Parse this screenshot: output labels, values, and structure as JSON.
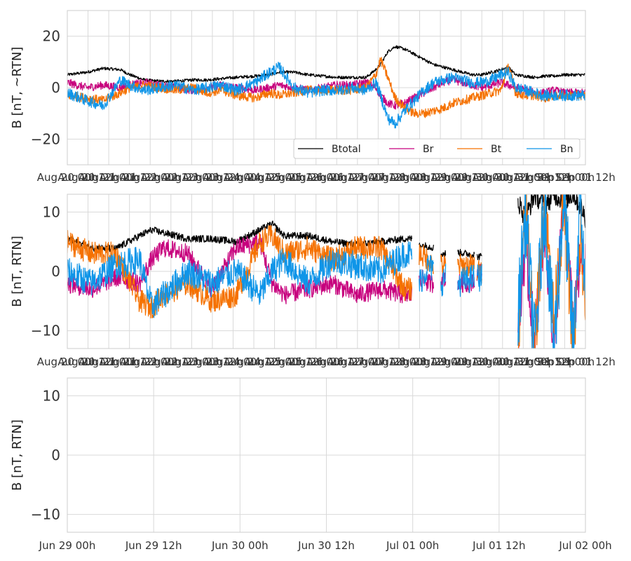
{
  "chart_data": [
    {
      "type": "line",
      "title": "",
      "ylabel": "B [nT, ~RTN]",
      "ylim": [
        -30,
        30
      ],
      "yticks": [
        -20,
        0,
        20
      ],
      "xlim": [
        0,
        21.5
      ],
      "x_tick_labels": [
        "Aug 20 00h",
        "Aug 20 12h",
        "Aug 21 00h",
        "Aug 21 12h",
        "Aug 22 00h",
        "Aug 22 12h",
        "Aug 23 00h",
        "Aug 23 12h",
        "Aug 24 00h",
        "Aug 24 12h",
        "Aug 25 00h",
        "Aug 25 12h",
        "Aug 26 00h",
        "Aug 26 12h",
        "Aug 27 00h",
        "Aug 27 12h",
        "Aug 28 00h",
        "Aug 28 12h",
        "Aug 29 00h",
        "Aug 29 12h",
        "Aug 30 00h",
        "Aug 30 12h",
        "Aug 31 00h",
        "Aug 31 12h",
        "Sep 01 00h",
        "Sep 01 12h"
      ],
      "x_tick_positions": [
        0,
        0.86,
        1.72,
        2.58,
        3.44,
        4.3,
        5.16,
        6.02,
        6.88,
        7.74,
        8.6,
        9.46,
        10.32,
        11.18,
        12.04,
        12.9,
        13.76,
        14.62,
        15.48,
        16.34,
        17.2,
        18.06,
        18.92,
        19.78,
        20.64,
        21.5
      ],
      "grid": true,
      "legend": {
        "position": "bottom-right",
        "columns": 4
      },
      "series": [
        {
          "name": "Btotal",
          "color": "#000000",
          "x": [
            0,
            0.8,
            1.5,
            2.2,
            2.6,
            3.2,
            3.8,
            4.5,
            5.2,
            5.8,
            6.4,
            7.0,
            7.8,
            8.4,
            8.8,
            9.4,
            10.0,
            10.6,
            11.2,
            11.8,
            12.4,
            12.8,
            13.0,
            13.3,
            13.6,
            14.0,
            14.4,
            14.8,
            15.2,
            15.6,
            16.0,
            16.4,
            16.8,
            17.2,
            17.6,
            18.0,
            18.3,
            18.6,
            19.0,
            19.4,
            19.8,
            20.2,
            20.6,
            21.0,
            21.1
          ],
          "y": [
            5,
            6,
            7.5,
            7,
            5,
            3,
            2.5,
            2.5,
            3,
            3,
            3.5,
            4,
            4.5,
            5,
            6,
            6,
            5,
            4.5,
            4,
            4,
            4,
            7,
            9,
            14,
            16,
            15,
            13,
            11,
            9,
            8,
            7,
            6,
            5,
            5,
            6,
            7,
            8,
            5,
            4.5,
            4,
            4.5,
            4.5,
            5,
            5,
            5
          ]
        },
        {
          "name": "Br",
          "color": "#c7007d",
          "x": [
            0,
            0.8,
            1.5,
            2.2,
            2.6,
            3.2,
            3.8,
            4.5,
            5.2,
            5.8,
            6.4,
            7.0,
            7.8,
            8.4,
            8.8,
            9.4,
            10.0,
            10.6,
            11.2,
            11.8,
            12.4,
            12.8,
            13.0,
            13.3,
            13.6,
            14.0,
            14.4,
            14.8,
            15.2,
            15.6,
            16.0,
            16.4,
            16.8,
            17.2,
            17.6,
            18.0,
            18.3,
            18.6,
            19.0,
            19.4,
            19.8,
            20.2,
            20.6,
            21.0,
            21.1
          ],
          "y": [
            2,
            0,
            1,
            0,
            1,
            2,
            1,
            0,
            -1,
            0,
            1,
            0,
            -1,
            0,
            1,
            0,
            -1,
            0,
            1,
            1,
            2,
            0,
            -3,
            -6,
            -7,
            -6,
            -4,
            -2,
            0,
            2,
            3,
            2,
            1,
            0,
            1,
            2,
            1,
            0,
            -1,
            -2,
            -2,
            -1,
            -2,
            -2,
            -2
          ]
        },
        {
          "name": "Bt",
          "color": "#f57100",
          "x": [
            0,
            0.8,
            1.5,
            2.2,
            2.6,
            3.2,
            3.8,
            4.5,
            5.2,
            5.8,
            6.4,
            7.0,
            7.8,
            8.4,
            8.8,
            9.4,
            10.0,
            10.6,
            11.2,
            11.8,
            12.4,
            12.8,
            13.0,
            13.3,
            13.6,
            14.0,
            14.4,
            14.8,
            15.2,
            15.6,
            16.0,
            16.4,
            16.8,
            17.2,
            17.6,
            18.0,
            18.3,
            18.6,
            19.0,
            19.4,
            19.8,
            20.2,
            20.6,
            21.0,
            21.1
          ],
          "y": [
            -3,
            -4,
            -5,
            -2,
            0,
            1,
            0,
            -1,
            0,
            -2,
            -1,
            -3,
            -4,
            -2,
            -3,
            -2,
            -1,
            -1,
            -1,
            -1,
            0,
            5,
            11,
            4,
            -4,
            -8,
            -10,
            -10,
            -9,
            -8,
            -6,
            -5,
            -4,
            -3,
            -2,
            -1,
            9,
            -2,
            -3,
            -3,
            -4,
            -3,
            -3,
            -3,
            -3
          ]
        },
        {
          "name": "Bn",
          "color": "#0f95e8",
          "x": [
            0,
            0.8,
            1.5,
            2.2,
            2.6,
            3.2,
            3.8,
            4.5,
            5.2,
            5.8,
            6.4,
            7.0,
            7.8,
            8.4,
            8.8,
            9.4,
            10.0,
            10.6,
            11.2,
            11.8,
            12.4,
            12.8,
            13.0,
            13.3,
            13.6,
            14.0,
            14.4,
            14.8,
            15.2,
            15.6,
            16.0,
            16.4,
            16.8,
            17.2,
            17.6,
            18.0,
            18.3,
            18.6,
            19.0,
            19.4,
            19.8,
            20.2,
            20.6,
            21.0,
            21.1
          ],
          "y": [
            -2,
            -5,
            -7,
            3,
            1,
            -1,
            0,
            1,
            -1,
            0,
            1,
            -1,
            2,
            6,
            8,
            0,
            -2,
            -1,
            -1,
            0,
            -1,
            2,
            -3,
            -12,
            -14,
            -9,
            -5,
            -1,
            2,
            3,
            4,
            3,
            2,
            2,
            3,
            5,
            6,
            0,
            -1,
            -2,
            -3,
            -3,
            -3,
            -3,
            -3
          ]
        }
      ]
    },
    {
      "type": "line",
      "title": "",
      "ylabel": "B [nT, RTN]",
      "ylim": [
        -13,
        13
      ],
      "yticks": [
        -10,
        0,
        10
      ],
      "xlim": [
        0,
        21.5
      ],
      "x_tick_labels": [
        "Aug 20 00h",
        "Aug 20 12h",
        "Aug 21 00h",
        "Aug 21 12h",
        "Aug 22 00h",
        "Aug 22 12h",
        "Aug 23 00h",
        "Aug 23 12h",
        "Aug 24 00h",
        "Aug 24 12h",
        "Aug 25 00h",
        "Aug 25 12h",
        "Aug 26 00h",
        "Aug 26 12h",
        "Aug 27 00h",
        "Aug 27 12h",
        "Aug 28 00h",
        "Aug 28 12h",
        "Aug 29 00h",
        "Aug 29 12h",
        "Aug 30 00h",
        "Aug 30 12h",
        "Aug 31 00h",
        "Aug 31 12h",
        "Sep 01 00h",
        "Sep 01 12h"
      ],
      "x_tick_positions": [
        0,
        0.86,
        1.72,
        2.58,
        3.44,
        4.3,
        5.16,
        6.02,
        6.88,
        7.74,
        8.6,
        9.46,
        10.32,
        11.18,
        12.04,
        12.9,
        13.76,
        14.62,
        15.48,
        16.34,
        17.2,
        18.06,
        18.92,
        19.78,
        20.64,
        21.5
      ],
      "grid": true,
      "segments": [
        [
          0,
          14.3
        ],
        [
          14.6,
          15.2
        ],
        [
          15.5,
          15.7
        ],
        [
          16.2,
          16.9
        ],
        [
          17.0,
          17.2
        ],
        [
          18.7,
          21.5
        ]
      ],
      "series": [
        {
          "name": "Btotal",
          "color": "#000000",
          "x": [
            0,
            1.0,
            2.0,
            3.0,
            3.5,
            4.0,
            5.0,
            6.0,
            7.0,
            8.0,
            8.5,
            9.0,
            10.0,
            11.0,
            12.0,
            13.0,
            14.0,
            14.3,
            14.6,
            15.0,
            15.2,
            15.5,
            15.7,
            16.2,
            16.9,
            17.0,
            17.2,
            18.7,
            19.0,
            19.4,
            19.8,
            20.2,
            20.6,
            21.0,
            21.3,
            21.5
          ],
          "y": [
            5.5,
            4,
            3.8,
            6,
            7,
            6.5,
            5.5,
            5.5,
            5,
            7,
            8,
            6,
            6,
            5,
            4.5,
            5,
            5.5,
            5.5,
            4.5,
            4.2,
            4,
            3,
            3,
            3.2,
            2.8,
            2.5,
            2.5,
            12,
            9,
            13,
            11,
            13,
            12,
            13,
            11,
            9
          ]
        },
        {
          "name": "Br",
          "color": "#c7007d",
          "x": [
            0,
            1.0,
            2.0,
            3.0,
            3.5,
            4.0,
            5.0,
            6.0,
            7.0,
            8.0,
            8.5,
            9.0,
            10.0,
            11.0,
            12.0,
            13.0,
            14.0,
            14.3,
            14.6,
            15.0,
            15.2,
            15.5,
            15.7,
            16.2,
            16.9,
            17.0,
            17.2,
            18.7,
            19.0,
            19.4,
            19.8,
            20.2,
            20.6,
            21.0,
            21.3,
            21.5
          ],
          "y": [
            -2,
            -3,
            -1,
            -2,
            2,
            4,
            3,
            -3,
            4,
            5,
            -2,
            -4,
            -3,
            -2,
            -4,
            -3,
            -4,
            -4,
            -1,
            -2,
            -2,
            -1,
            -1,
            -2,
            -2,
            0,
            0,
            -10,
            4,
            -12,
            8,
            -13,
            13,
            -10,
            2,
            0
          ]
        },
        {
          "name": "Bt",
          "color": "#f57100",
          "x": [
            0,
            1.0,
            2.0,
            3.0,
            3.5,
            4.0,
            5.0,
            6.0,
            7.0,
            8.0,
            8.5,
            9.0,
            10.0,
            11.0,
            12.0,
            13.0,
            14.0,
            14.3,
            14.6,
            15.0,
            15.2,
            15.5,
            15.7,
            16.2,
            16.9,
            17.0,
            17.2,
            18.7,
            19.0,
            19.4,
            19.8,
            20.2,
            20.6,
            21.0,
            21.3,
            21.5
          ],
          "y": [
            5,
            3,
            3,
            -5,
            -6,
            -4,
            -2,
            -5,
            -4,
            5,
            6,
            3,
            4,
            2,
            4,
            4,
            -3,
            -3,
            3,
            2,
            1,
            1,
            1,
            1,
            1,
            0,
            0,
            -12,
            13,
            -13,
            13,
            -9,
            12,
            -13,
            6,
            -8
          ]
        },
        {
          "name": "Bn",
          "color": "#0f95e8",
          "x": [
            0,
            1.0,
            2.0,
            3.0,
            3.5,
            4.0,
            5.0,
            6.0,
            7.0,
            8.0,
            8.5,
            9.0,
            10.0,
            11.0,
            12.0,
            13.0,
            14.0,
            14.3,
            14.6,
            15.0,
            15.2,
            15.5,
            15.7,
            16.2,
            16.9,
            17.0,
            17.2,
            18.7,
            19.0,
            19.4,
            19.8,
            20.2,
            20.6,
            21.0,
            21.3,
            21.5
          ],
          "y": [
            0,
            -2,
            1,
            2,
            -6,
            -4,
            0,
            -2,
            0,
            -4,
            0,
            2,
            -2,
            2,
            1,
            0,
            3,
            3,
            -2,
            1,
            0,
            -2,
            -1,
            -2,
            -1,
            -1,
            -1,
            -8,
            10,
            -13,
            12,
            -13,
            13,
            -12,
            13,
            -6
          ]
        }
      ]
    },
    {
      "type": "line",
      "title": "",
      "ylabel": "B [nT, RTN]",
      "ylim": [
        -13,
        13
      ],
      "yticks": [
        -10,
        0,
        10
      ],
      "xlim": [
        0,
        3
      ],
      "x_tick_labels": [
        "Jun 29 00h",
        "Jun 29 12h",
        "Jun 30 00h",
        "Jun 30 12h",
        "Jul 01 00h",
        "Jul 01 12h",
        "Jul 02 00h"
      ],
      "x_tick_positions": [
        0,
        0.5,
        1.0,
        1.5,
        2.0,
        2.5,
        3.0
      ],
      "grid": true,
      "series": []
    }
  ],
  "legend": {
    "items": [
      {
        "label": "Btotal",
        "color": "#000000"
      },
      {
        "label": "Br",
        "color": "#c7007d"
      },
      {
        "label": "Bt",
        "color": "#f57100"
      },
      {
        "label": "Bn",
        "color": "#0f95e8"
      }
    ]
  }
}
